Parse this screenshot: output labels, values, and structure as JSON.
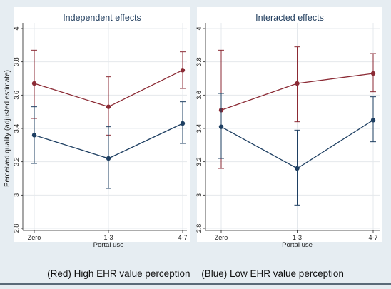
{
  "figure": {
    "y_axis_label": "Perceived quality (adjusted estimate)",
    "caption_red": "(Red) High EHR value perception",
    "caption_blue": "(Blue) Low EHR value perception"
  },
  "colors": {
    "red": "#8b2a34",
    "blue": "#1e3f62",
    "bg": "#e6edf2",
    "panel": "#ffffff"
  },
  "chart_data": [
    {
      "type": "line",
      "title": "Independent effects",
      "xlabel": "Portal use",
      "ylabel": "Perceived quality (adjusted estimate)",
      "categories": [
        "Zero",
        "1-3",
        "4-7"
      ],
      "ylim": [
        2.8,
        4.0
      ],
      "yticks": [
        "2.8",
        "3",
        "3.2",
        "3.4",
        "3.6",
        "3.8",
        "4"
      ],
      "series": [
        {
          "color": "#8b2a34",
          "values": [
            3.67,
            3.53,
            3.75
          ],
          "lower": [
            3.46,
            3.36,
            3.64
          ],
          "upper": [
            3.87,
            3.71,
            3.86
          ]
        },
        {
          "color": "#1e3f62",
          "values": [
            3.36,
            3.22,
            3.43
          ],
          "lower": [
            3.19,
            3.04,
            3.31
          ],
          "upper": [
            3.53,
            3.41,
            3.56
          ]
        }
      ]
    },
    {
      "type": "line",
      "title": "Interacted effects",
      "xlabel": "Portal use",
      "ylabel": "",
      "categories": [
        "Zero",
        "1-3",
        "4-7"
      ],
      "ylim": [
        2.8,
        4.0
      ],
      "yticks": [
        "2.8",
        "3",
        "3.2",
        "3.4",
        "3.6",
        "3.8",
        "4"
      ],
      "series": [
        {
          "color": "#8b2a34",
          "values": [
            3.51,
            3.67,
            3.73
          ],
          "lower": [
            3.16,
            3.44,
            3.62
          ],
          "upper": [
            3.87,
            3.89,
            3.85
          ]
        },
        {
          "color": "#1e3f62",
          "values": [
            3.41,
            3.16,
            3.45
          ],
          "lower": [
            3.22,
            2.94,
            3.32
          ],
          "upper": [
            3.61,
            3.39,
            3.59
          ]
        }
      ]
    }
  ]
}
